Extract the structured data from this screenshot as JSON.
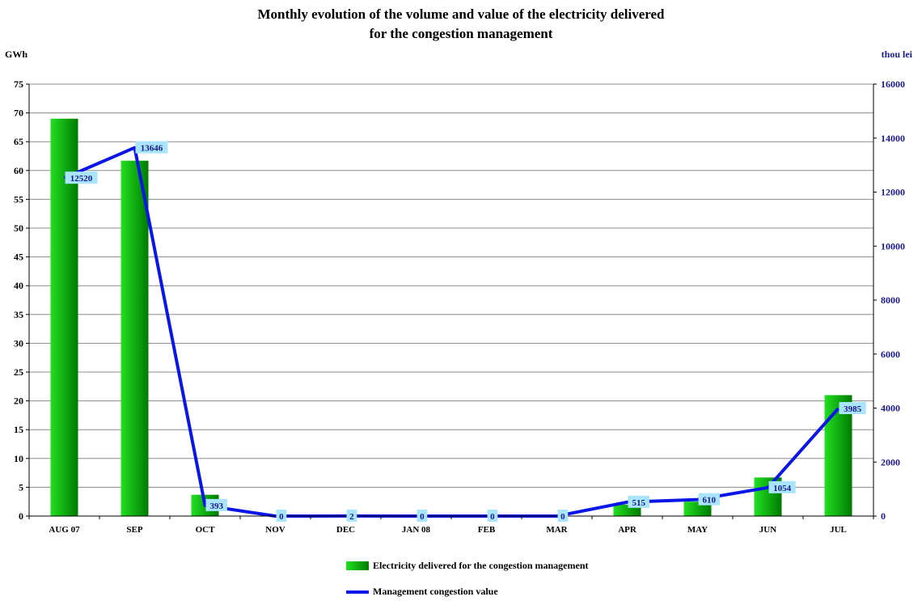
{
  "title_line1": "Monthly evolution of the volume and value of the electricity delivered",
  "title_line2": "for the congestion management",
  "colors": {
    "bar_light": "#22e022",
    "bar_dark": "#007a00",
    "line": "#0a16e6",
    "label_bg": "#a8e4fa",
    "right_axis_text": "#1a1a8c"
  },
  "chart_data": {
    "type": "bar",
    "categories": [
      "AUG 07",
      "SEP",
      "OCT",
      "NOV",
      "DEC",
      "JAN 08",
      "FEB",
      "MAR",
      "APR",
      "MAY",
      "JUN",
      "JUL"
    ],
    "series": [
      {
        "name": "Electricity delivered for the congestion management",
        "type": "bar",
        "axis": "left",
        "values": [
          69,
          61.7,
          3.7,
          0,
          0,
          0,
          0,
          0,
          2,
          2.5,
          6.7,
          21
        ]
      },
      {
        "name": "Management congestion value",
        "type": "line",
        "axis": "right",
        "values": [
          12520,
          13646,
          393,
          0,
          2,
          0,
          0,
          0,
          515,
          610,
          1054,
          3985
        ],
        "labels": [
          "12520",
          "13646",
          "393",
          "0",
          "2",
          "0",
          "0",
          "0",
          "515",
          "610",
          "1054",
          "3985"
        ]
      }
    ],
    "ylabel": "GWh",
    "y2label": "thou lei",
    "ylim": [
      0,
      75
    ],
    "y2lim": [
      0,
      16000
    ],
    "yticks": [
      "0",
      "5",
      "10",
      "15",
      "20",
      "25",
      "30",
      "35",
      "40",
      "45",
      "50",
      "55",
      "60",
      "65",
      "70",
      "75"
    ],
    "y2ticks": [
      "0",
      "2000",
      "4000",
      "6000",
      "8000",
      "10000",
      "12000",
      "14000",
      "16000"
    ],
    "grid": true,
    "legend_position": "bottom"
  }
}
